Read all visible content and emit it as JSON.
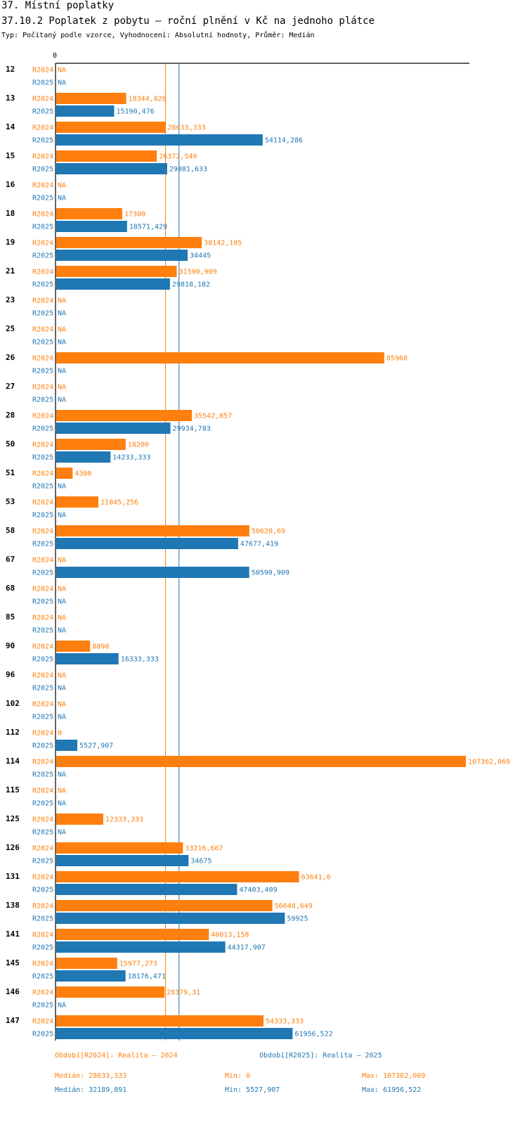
{
  "header": {
    "title": "37. Místní poplatky",
    "chart_title": "37.10.2 Poplatek z pobytu – roční plnění v Kč na jednoho plátce",
    "subtitle": "Typ: Počítaný podle vzorce, Vyhodnocení: Absolutní hodnoty, Průměr: Medián"
  },
  "colors": {
    "r2024": "#ff7f0e",
    "r2025": "#1f77b4",
    "axis": "#000000"
  },
  "chart_data": {
    "type": "bar",
    "orientation": "horizontal",
    "title": "37.10.2 Poplatek z pobytu – roční plnění v Kč na jednoho plátce",
    "axis_zero_label": "0",
    "xlim": [
      0,
      107362.069
    ],
    "series_names": [
      "R2024",
      "R2025"
    ],
    "categories": [
      "12",
      "13",
      "14",
      "15",
      "16",
      "18",
      "19",
      "21",
      "23",
      "25",
      "26",
      "27",
      "28",
      "50",
      "51",
      "53",
      "58",
      "67",
      "68",
      "85",
      "90",
      "96",
      "102",
      "112",
      "114",
      "115",
      "125",
      "126",
      "131",
      "138",
      "141",
      "145",
      "146",
      "147"
    ],
    "series": [
      {
        "name": "R2024",
        "values": [
          null,
          18344.828,
          28633.333,
          26372.549,
          null,
          17300,
          38142.105,
          31590.909,
          null,
          null,
          85960,
          null,
          35542.857,
          18200,
          4300,
          11045.256,
          50620.69,
          null,
          null,
          null,
          8890,
          null,
          null,
          0,
          107362.069,
          null,
          12333.333,
          33216.667,
          63641.6,
          56648.649,
          40013.158,
          15977.273,
          28379.31,
          54333.333
        ],
        "labels": [
          "NA",
          "18344,828",
          "28633,333",
          "26372,549",
          "NA",
          "17300",
          "38142,105",
          "31590,909",
          "NA",
          "NA",
          "85960",
          "NA",
          "35542,857",
          "18200",
          "4300",
          "11045,256",
          "50620,69",
          "NA",
          "NA",
          "NA",
          "8890",
          "NA",
          "NA",
          "0",
          "107362,069",
          "NA",
          "12333,333",
          "33216,667",
          "63641,6",
          "56648,649",
          "40013,158",
          "15977,273",
          "28379,31",
          "54333,333"
        ]
      },
      {
        "name": "R2025",
        "values": [
          null,
          15190.476,
          54114.286,
          29081.633,
          null,
          18571.429,
          34445,
          29818.182,
          null,
          null,
          null,
          null,
          29934.783,
          14233.333,
          null,
          null,
          47677.419,
          50590.909,
          null,
          null,
          16333.333,
          null,
          null,
          5527.907,
          null,
          null,
          null,
          34675,
          47403.409,
          59925,
          44317.907,
          18176.471,
          null,
          61956.522
        ],
        "labels": [
          "NA",
          "15190,476",
          "54114,286",
          "29081,633",
          "NA",
          "18571,429",
          "34445",
          "29818,182",
          "NA",
          "NA",
          "NA",
          "NA",
          "29934,783",
          "14233,333",
          "NA",
          "NA",
          "47677,419",
          "50590,909",
          "NA",
          "NA",
          "16333,333",
          "NA",
          "NA",
          "5527,907",
          "NA",
          "NA",
          "NA",
          "34675",
          "47403,409",
          "59925",
          "44317,907",
          "18176,471",
          "NA",
          "61956,522"
        ]
      }
    ],
    "reference_lines": [
      {
        "series": "R2024",
        "kind": "median",
        "value": 28633.333
      },
      {
        "series": "R2025",
        "kind": "median",
        "value": 32189.891
      }
    ]
  },
  "legend": {
    "r2024_label": "Období[R2024]: Realita – 2024",
    "r2025_label": "Období[R2025]: Realita – 2025"
  },
  "stats": {
    "r2024": {
      "median": "Medián: 28633,333",
      "min": "Min: 0",
      "max": "Max: 107362,069"
    },
    "r2025": {
      "median": "Medián: 32189,891",
      "min": "Min: 5527,907",
      "max": "Max: 61956,522"
    }
  }
}
